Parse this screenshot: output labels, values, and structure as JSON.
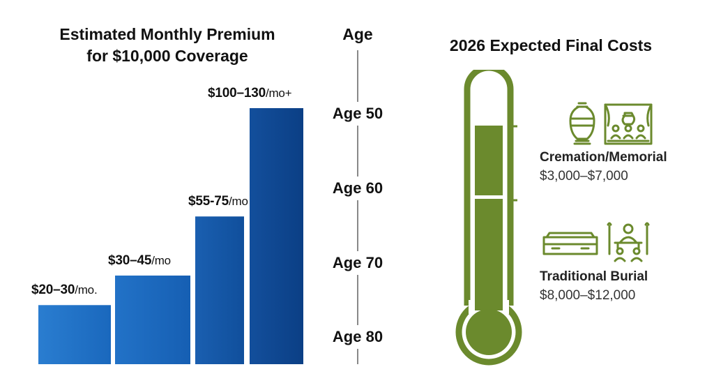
{
  "chart_data": [
    {
      "type": "bar",
      "title": [
        "Estimated Monthly Premium",
        "for $10,000 Coverage"
      ],
      "categories": [
        "Age 80",
        "Age 70",
        "Age 60",
        "Age 50"
      ],
      "values_range_low": [
        20,
        30,
        55,
        100
      ],
      "values_range_high": [
        30,
        45,
        75,
        130
      ],
      "data_labels": [
        {
          "amount": "$20–30",
          "unit": "/mo."
        },
        {
          "amount": "$30–45",
          "unit": "/mo"
        },
        {
          "amount": "$55-75",
          "unit": "/mo"
        },
        {
          "amount": "$100–130",
          "unit": "/mo+"
        }
      ],
      "axis_title": "Age",
      "age_ticks": [
        "Age 50",
        "Age 60",
        "Age 70",
        "Age 80"
      ],
      "bar_colors": [
        "#1f6fc4",
        "#1a64b8",
        "#13509f",
        "#0d468e"
      ]
    },
    {
      "type": "thermometer",
      "title": "2026 Expected Final Costs",
      "items": [
        {
          "name": "Cremation/Memorial",
          "range": "$3,000–$7,000",
          "low": 3000,
          "high": 7000,
          "icon": "urn-and-memorial-service-icon"
        },
        {
          "name": "Traditional Burial",
          "range": "$8,000–$12,000",
          "low": 8000,
          "high": 12000,
          "icon": "casket-and-funeral-service-icon"
        }
      ],
      "color": "#6b8a2d"
    }
  ]
}
